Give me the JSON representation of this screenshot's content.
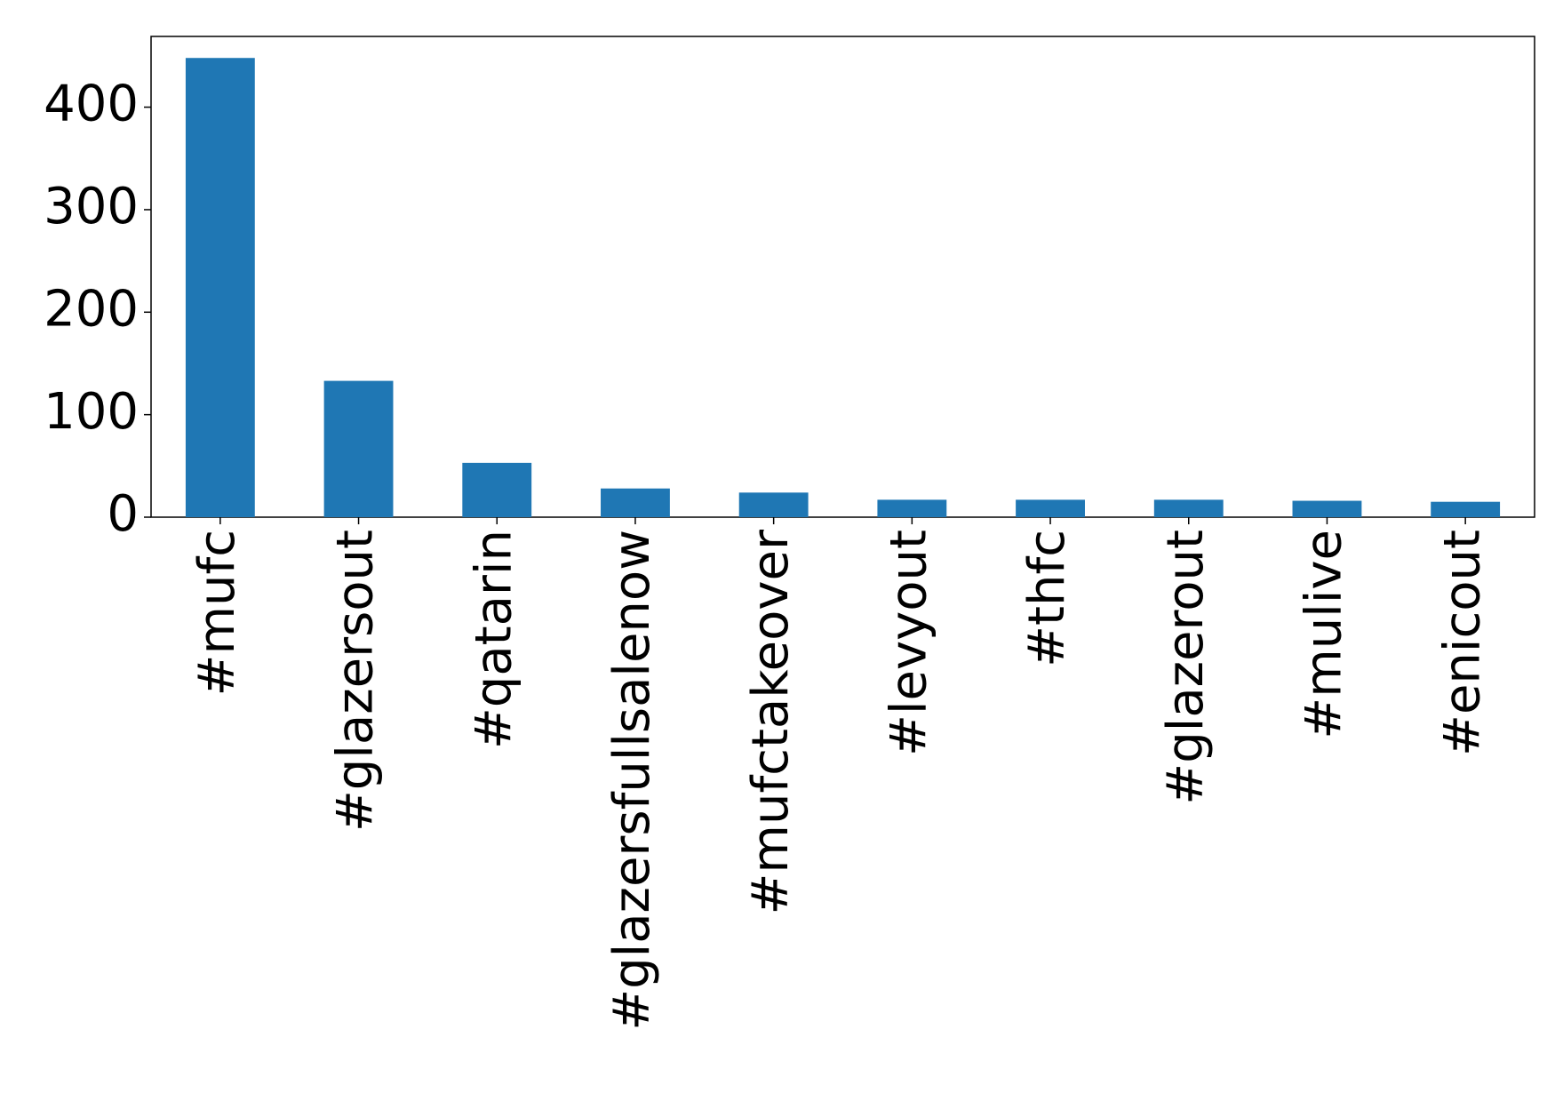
{
  "chart_data": {
    "type": "bar",
    "categories": [
      "#mufc",
      "#glazersout",
      "#qatarin",
      "#glazersfullsalenow",
      "#mufctakeover",
      "#levyout",
      "#thfc",
      "#glazerout",
      "#mulive",
      "#enicout"
    ],
    "values": [
      448,
      133,
      53,
      28,
      24,
      17,
      17,
      17,
      16,
      15
    ],
    "color": "#1f77b4",
    "ylim": [
      0,
      469
    ],
    "yticks": [
      0,
      100,
      200,
      300,
      400
    ],
    "grid": false
  }
}
